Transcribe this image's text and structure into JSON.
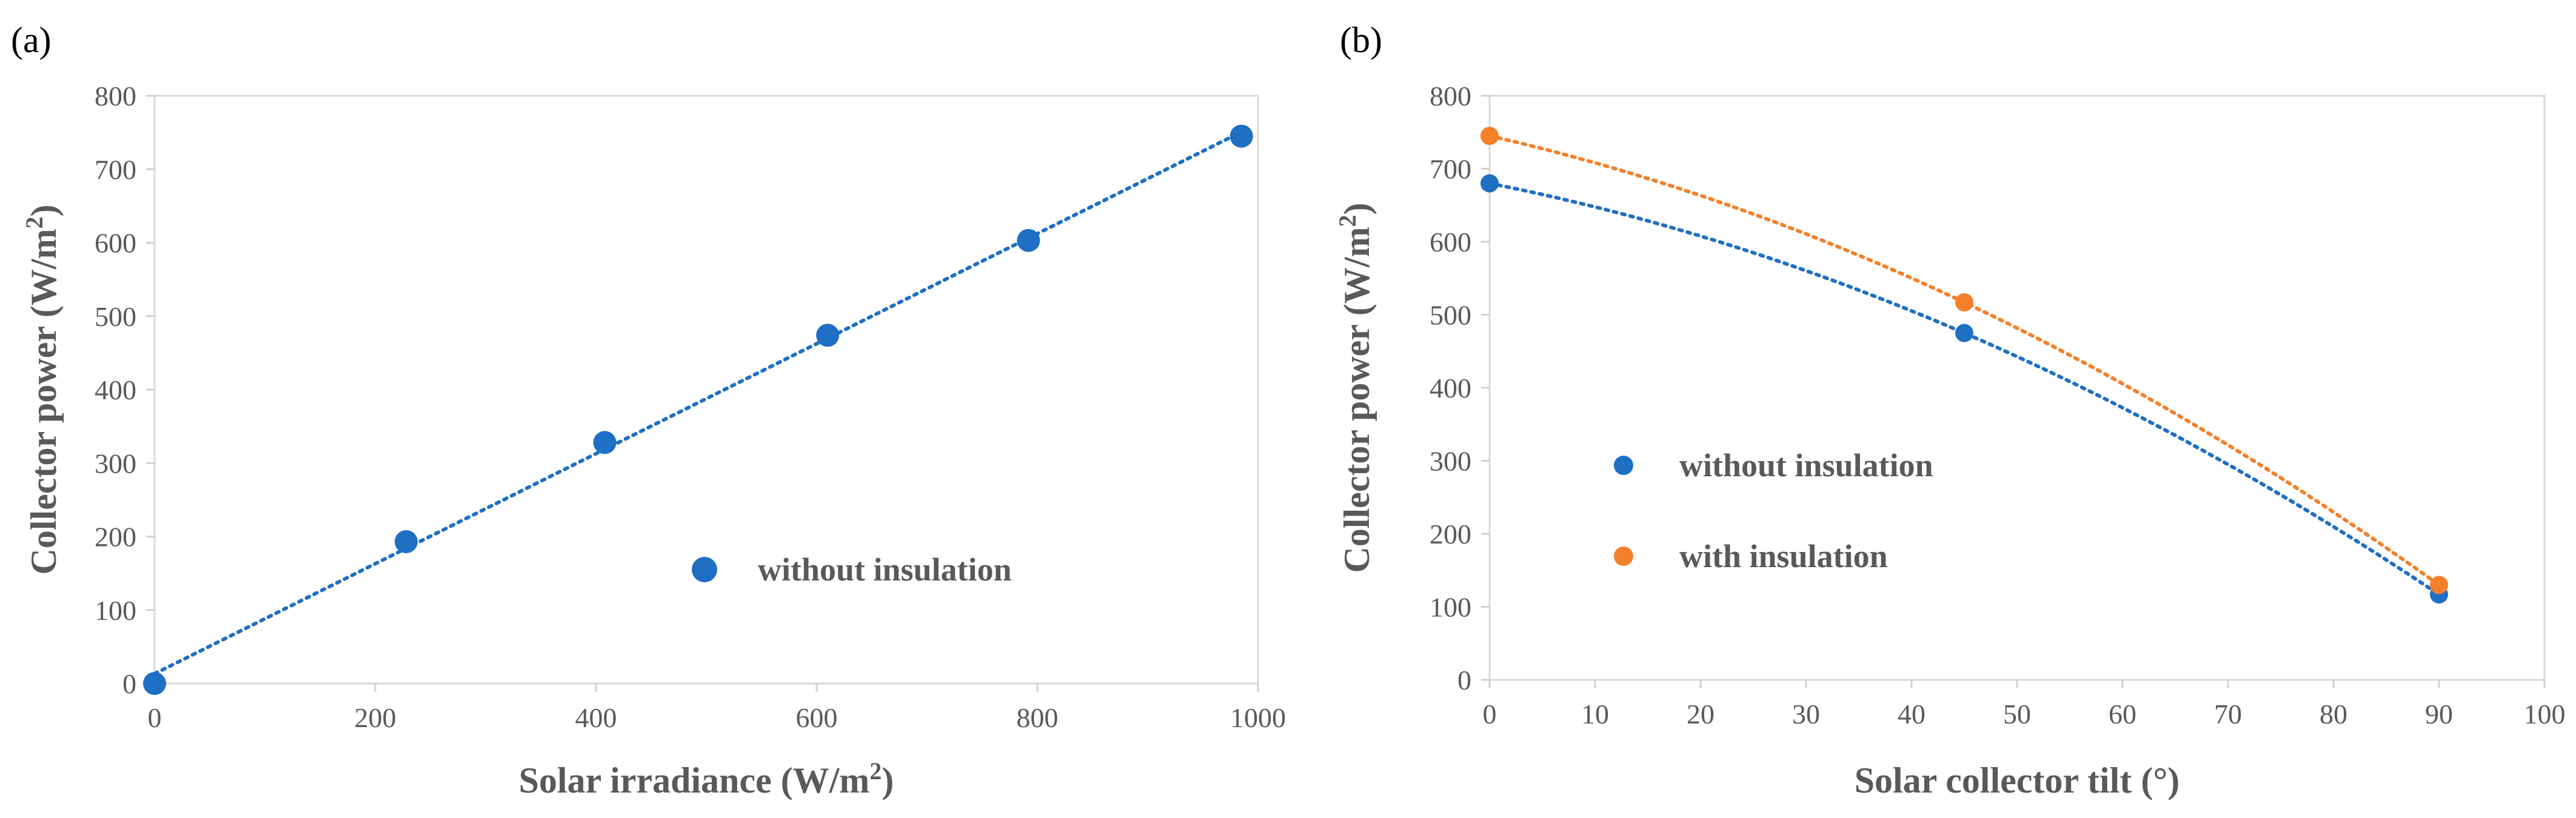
{
  "chart_data": [
    {
      "type": "scatter",
      "panel_label": "(a)",
      "title": "",
      "xlabel": "Solar irradiance (W/m",
      "xlabel_sup": "2",
      "xlabel_end": ")",
      "ylabel": "Collector  power (W/m",
      "ylabel_sup": "2",
      "ylabel_end": ")",
      "xlim": [
        0,
        1000
      ],
      "ylim": [
        0,
        800
      ],
      "x_ticks": [
        0,
        200,
        400,
        600,
        800,
        1000
      ],
      "y_ticks": [
        0,
        100,
        200,
        300,
        400,
        500,
        600,
        700,
        800
      ],
      "grid": false,
      "legend_position": "lower-right",
      "series": [
        {
          "name": "without insulation",
          "color": "#1f6fc5",
          "trendline": "linear",
          "x": [
            0,
            228,
            408,
            610,
            792,
            985
          ],
          "y": [
            0,
            193,
            328,
            474,
            603,
            745
          ]
        }
      ]
    },
    {
      "type": "scatter",
      "panel_label": "(b)",
      "title": "",
      "xlabel": "Solar collector tilt (°)",
      "ylabel": "Collector power (W/m",
      "ylabel_sup": "2",
      "ylabel_end": ")",
      "xlim": [
        0,
        100
      ],
      "ylim": [
        0,
        800
      ],
      "x_ticks": [
        0,
        10,
        20,
        30,
        40,
        50,
        60,
        70,
        80,
        90,
        100
      ],
      "y_ticks": [
        0,
        100,
        200,
        300,
        400,
        500,
        600,
        700,
        800
      ],
      "grid": false,
      "legend_position": "center-left",
      "series": [
        {
          "name": "without insulation",
          "color": "#1f6fc5",
          "trendline": "polynomial",
          "x": [
            0,
            45,
            90
          ],
          "y": [
            680,
            475,
            117
          ]
        },
        {
          "name": "with insulation",
          "color": "#f5802a",
          "trendline": "polynomial",
          "x": [
            0,
            45,
            90
          ],
          "y": [
            745,
            517,
            130
          ]
        }
      ]
    }
  ]
}
